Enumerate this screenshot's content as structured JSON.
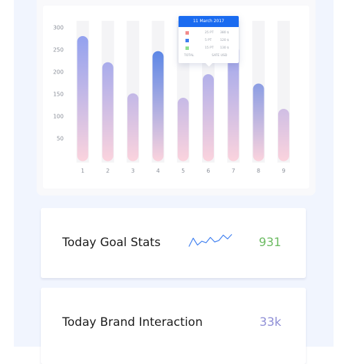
{
  "chart_data": {
    "type": "bar",
    "categories": [
      "1",
      "2",
      "3",
      "4",
      "5",
      "6",
      "7",
      "8",
      "9"
    ],
    "values": [
      282,
      223,
      153,
      248,
      143,
      196,
      262,
      175,
      118
    ],
    "series_style": [
      "light",
      "light",
      "light",
      "dark",
      "light",
      "light",
      "light",
      "dark",
      "light"
    ],
    "ylim": [
      0,
      300
    ],
    "yticks": [
      50,
      100,
      150,
      200,
      250,
      300
    ],
    "colors": {
      "dark_top": "#3b77e8",
      "light_top": "#8c9ef0",
      "bottom": "#fbd3dd",
      "grid_stripe": "#f4f4f6"
    },
    "tooltip": {
      "date": "11 March 2017",
      "rows": [
        {
          "color": "#f28b8b",
          "pt": "25 PT",
          "amount": "380 $"
        },
        {
          "color": "#3d7ef0",
          "pt": "5 PT",
          "amount": "120 $"
        },
        {
          "color": "#8fe08f",
          "pt": "15 PT",
          "amount": "130 $"
        }
      ],
      "footer_left": "TOTAL",
      "footer_right": "SATE USD"
    }
  },
  "stats": [
    {
      "label": "Today Goal Stats",
      "value": "931",
      "color": "#6cbb62",
      "sparkline": [
        0.2,
        0.75,
        0.3,
        0.55,
        0.45,
        0.8,
        0.5,
        0.6,
        0.95,
        0.7,
        1.0
      ]
    },
    {
      "label": "Today Brand Interaction",
      "value": "33k",
      "color": "#8f8fd6"
    }
  ]
}
